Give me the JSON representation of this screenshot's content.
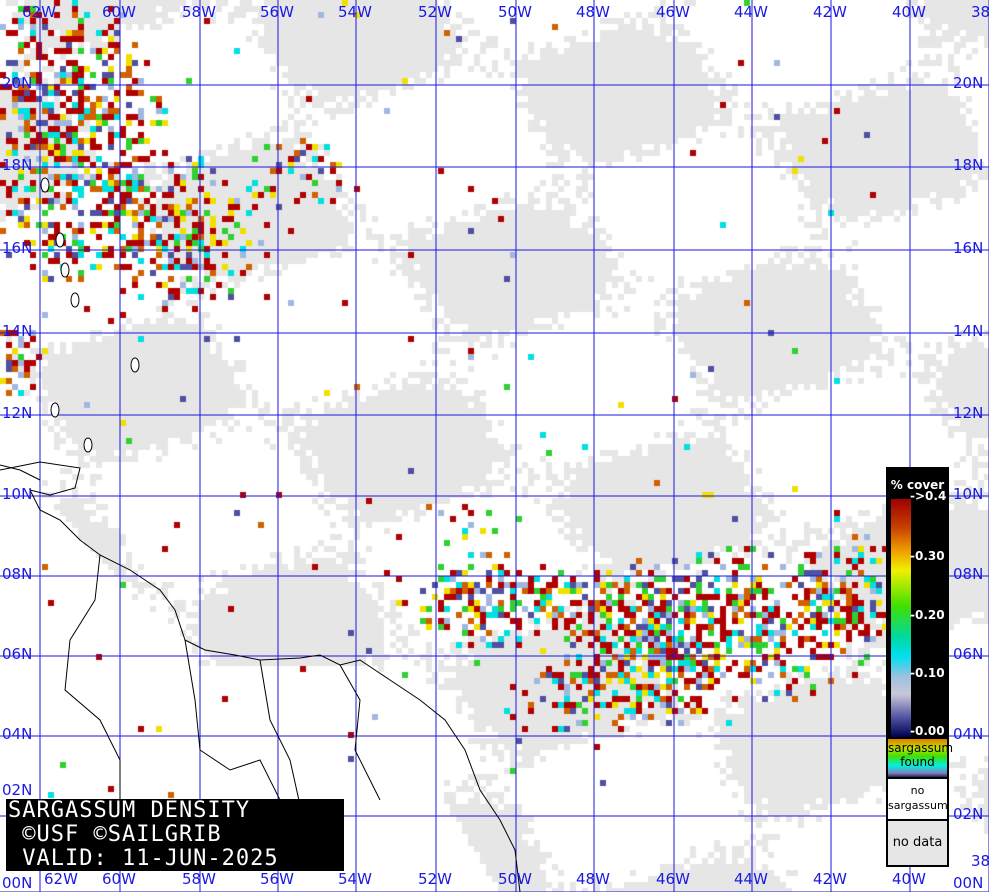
{
  "map": {
    "lon_labels": [
      "62W",
      "60W",
      "58W",
      "56W",
      "54W",
      "52W",
      "50W",
      "48W",
      "46W",
      "44W",
      "42W",
      "40W",
      "38"
    ],
    "lat_labels": [
      "20N",
      "18N",
      "16N",
      "14N",
      "12N",
      "10N",
      "08N",
      "06N",
      "04N",
      "02N",
      "00N"
    ],
    "grid_color": "#1a1adf",
    "no_data_color": "#e6e6e6"
  },
  "title": {
    "line1": "SARGASSUM DENSITY",
    "line2": " ©USF ©SAILGRIB",
    "line3": " VALID: 11-JUN-2025"
  },
  "legend": {
    "header": "% cover",
    "ticks": [
      "->0.4",
      "-0.30",
      "-0.20",
      "-0.10",
      "-0.00"
    ],
    "found_label_1": "sargassum",
    "found_label_2": "found",
    "none_label_1": "no",
    "none_label_2": "sargassum",
    "nodata_label": "no data",
    "colors": [
      "#a00000",
      "#f0a000",
      "#f0f000",
      "#40e000",
      "#00e0f0",
      "#c8c8d8",
      "#000050"
    ]
  }
}
